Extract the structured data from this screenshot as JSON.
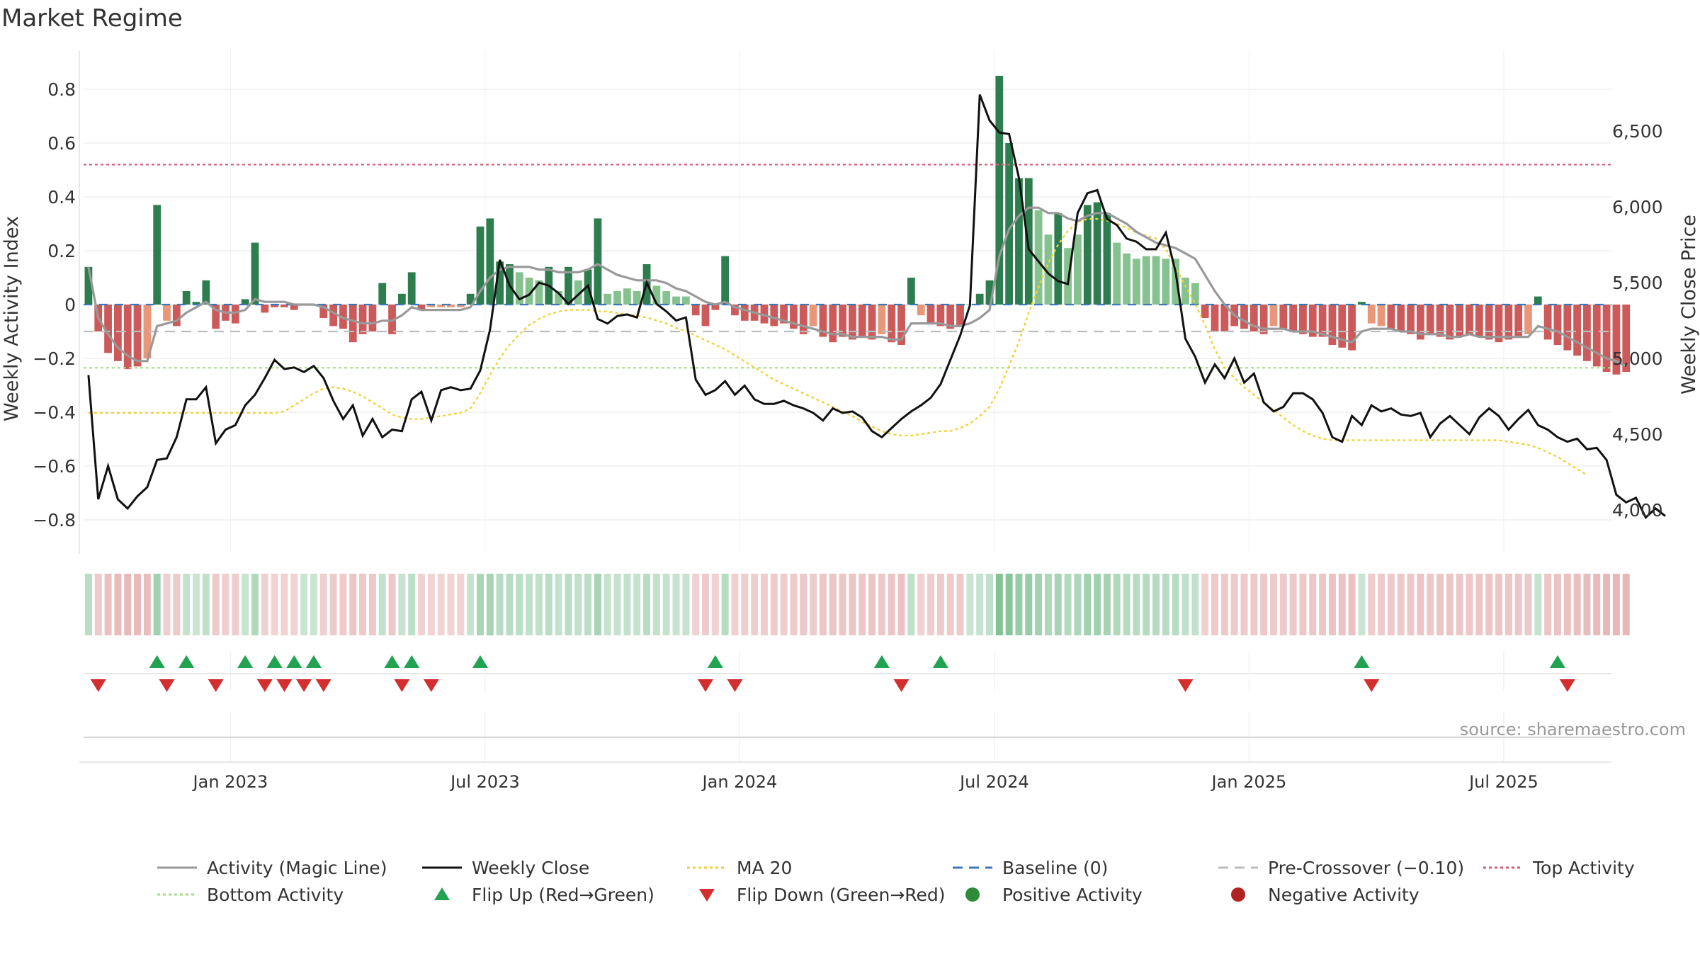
{
  "page": {
    "title": "Market Regime",
    "source": "source: sharemaestro.com"
  },
  "colors": {
    "pos_dark": "#2e7d4f",
    "pos_light": "#86c28f",
    "neg_dark": "#cc5a5a",
    "neg_light": "#e8977a",
    "magic_line": "#999999",
    "close": "#111111",
    "ma20": "#f0d23a",
    "baseline": "#3a78b8",
    "pre_crossover": "#bdbdbd",
    "top_activity": "#d45d7a",
    "bottom_activity": "#a9d98a",
    "flip_up": "#22a352",
    "flip_down": "#d32f2f",
    "positive_activity": "#2e8b3a",
    "negative_activity": "#b22222"
  },
  "chart_data": {
    "type": "bar",
    "title": "Market Regime",
    "ylabel": "Weekly Activity Index",
    "y2label": "Weekly Close Price",
    "ylim": [
      -0.92,
      0.94
    ],
    "y2lim": [
      3750,
      7000
    ],
    "yticks": [
      "0.8",
      "0.6",
      "0.4",
      "0.2",
      "0",
      "−0.2",
      "−0.4",
      "−0.6",
      "−0.8"
    ],
    "ytick_values": [
      0.8,
      0.6,
      0.4,
      0.2,
      0,
      -0.2,
      -0.4,
      -0.6,
      -0.8
    ],
    "y2ticks": [
      "6,500",
      "6,000",
      "5,500",
      "5,000",
      "4,500",
      "4,000"
    ],
    "y2tick_values": [
      6500,
      6000,
      5500,
      5000,
      4500,
      4000
    ],
    "xticks": [
      "Jan 2023",
      "Jul 2023",
      "Jan 2024",
      "Jul 2024",
      "Jan 2025",
      "Jul 2025"
    ],
    "xtick_weeks": [
      14.5,
      40.5,
      66.5,
      92.5,
      118.5,
      144.5
    ],
    "week_count": 156,
    "top_activity": 0.52,
    "bottom_activity": -0.235,
    "pre_crossover": -0.1,
    "baseline": 0,
    "activity": [
      0.14,
      -0.1,
      -0.18,
      -0.21,
      -0.24,
      -0.23,
      -0.2,
      0.37,
      -0.06,
      -0.08,
      0.05,
      0.01,
      0.09,
      -0.09,
      -0.06,
      -0.07,
      0.02,
      0.23,
      -0.03,
      -0.01,
      -0.01,
      -0.02,
      0.0,
      0.0,
      -0.05,
      -0.08,
      -0.09,
      -0.14,
      -0.11,
      -0.1,
      0.08,
      -0.11,
      0.04,
      0.12,
      -0.02,
      -0.01,
      -0.01,
      -0.01,
      -0.01,
      0.04,
      0.29,
      0.32,
      0.16,
      0.15,
      0.12,
      0.1,
      0.09,
      0.14,
      0.05,
      0.14,
      0.09,
      0.13,
      0.32,
      0.04,
      0.05,
      0.06,
      0.05,
      0.15,
      0.07,
      0.05,
      0.03,
      0.03,
      -0.04,
      -0.08,
      -0.02,
      0.18,
      -0.04,
      -0.06,
      -0.06,
      -0.07,
      -0.08,
      -0.07,
      -0.09,
      -0.11,
      -0.08,
      -0.12,
      -0.14,
      -0.12,
      -0.13,
      -0.12,
      -0.13,
      -0.11,
      -0.14,
      -0.15,
      0.1,
      -0.04,
      -0.07,
      -0.08,
      -0.09,
      -0.08,
      0.0,
      0.04,
      0.09,
      0.85,
      0.6,
      0.47,
      0.47,
      0.35,
      0.26,
      0.34,
      0.21,
      0.26,
      0.37,
      0.38,
      0.34,
      0.23,
      0.19,
      0.17,
      0.18,
      0.18,
      0.17,
      0.17,
      0.1,
      0.08,
      -0.05,
      -0.1,
      -0.1,
      -0.08,
      -0.09,
      -0.1,
      -0.11,
      -0.08,
      -0.09,
      -0.1,
      -0.11,
      -0.12,
      -0.12,
      -0.15,
      -0.16,
      -0.17,
      0.01,
      -0.07,
      -0.08,
      -0.09,
      -0.1,
      -0.11,
      -0.13,
      -0.11,
      -0.12,
      -0.13,
      -0.12,
      -0.11,
      -0.12,
      -0.13,
      -0.14,
      -0.13,
      -0.12,
      -0.11,
      0.03,
      -0.13,
      -0.15,
      -0.17,
      -0.19,
      -0.21,
      -0.23,
      -0.25,
      -0.26,
      -0.25
    ],
    "magic_line": [
      0.14,
      -0.05,
      -0.11,
      -0.16,
      -0.19,
      -0.21,
      -0.21,
      -0.08,
      -0.07,
      -0.06,
      -0.03,
      -0.01,
      0.01,
      -0.02,
      -0.03,
      -0.03,
      -0.02,
      0.02,
      0.01,
      0.01,
      0.01,
      0.0,
      0.0,
      0.0,
      -0.01,
      -0.03,
      -0.05,
      -0.06,
      -0.07,
      -0.07,
      -0.06,
      -0.06,
      -0.04,
      -0.01,
      -0.02,
      -0.02,
      -0.02,
      -0.02,
      -0.02,
      -0.01,
      0.05,
      0.1,
      0.13,
      0.14,
      0.14,
      0.14,
      0.13,
      0.13,
      0.12,
      0.12,
      0.12,
      0.13,
      0.15,
      0.13,
      0.11,
      0.1,
      0.09,
      0.09,
      0.09,
      0.08,
      0.06,
      0.05,
      0.03,
      0.01,
      0.0,
      0.01,
      -0.01,
      -0.02,
      -0.03,
      -0.04,
      -0.05,
      -0.06,
      -0.07,
      -0.08,
      -0.09,
      -0.1,
      -0.11,
      -0.11,
      -0.12,
      -0.12,
      -0.12,
      -0.12,
      -0.13,
      -0.13,
      -0.07,
      -0.07,
      -0.07,
      -0.07,
      -0.08,
      -0.08,
      -0.07,
      -0.05,
      -0.02,
      0.18,
      0.28,
      0.33,
      0.36,
      0.36,
      0.34,
      0.34,
      0.32,
      0.31,
      0.33,
      0.34,
      0.34,
      0.32,
      0.3,
      0.27,
      0.25,
      0.23,
      0.22,
      0.21,
      0.19,
      0.17,
      0.11,
      0.05,
      0.0,
      -0.04,
      -0.06,
      -0.08,
      -0.09,
      -0.09,
      -0.09,
      -0.1,
      -0.1,
      -0.1,
      -0.11,
      -0.12,
      -0.13,
      -0.14,
      -0.1,
      -0.09,
      -0.09,
      -0.09,
      -0.1,
      -0.1,
      -0.11,
      -0.11,
      -0.11,
      -0.12,
      -0.12,
      -0.11,
      -0.12,
      -0.12,
      -0.12,
      -0.12,
      -0.12,
      -0.12,
      -0.08,
      -0.09,
      -0.1,
      -0.12,
      -0.14,
      -0.16,
      -0.18,
      -0.2,
      -0.21,
      -0.23
    ],
    "ma20": [
      4640,
      4640,
      4640,
      4640,
      4640,
      4640,
      4640,
      4640,
      4640,
      4640,
      4640,
      4640,
      4640,
      4640,
      4640,
      4640,
      4640,
      4640,
      4640,
      4640,
      4650,
      4690,
      4730,
      4770,
      4800,
      4810,
      4800,
      4780,
      4750,
      4710,
      4670,
      4630,
      4610,
      4600,
      4600,
      4610,
      4620,
      4630,
      4640,
      4670,
      4770,
      4890,
      5000,
      5090,
      5160,
      5220,
      5260,
      5290,
      5310,
      5320,
      5320,
      5320,
      5310,
      5310,
      5300,
      5290,
      5280,
      5270,
      5250,
      5230,
      5200,
      5180,
      5150,
      5120,
      5090,
      5060,
      5020,
      4980,
      4940,
      4900,
      4860,
      4830,
      4800,
      4770,
      4740,
      4710,
      4680,
      4650,
      4620,
      4580,
      4550,
      4520,
      4500,
      4490,
      4490,
      4500,
      4510,
      4520,
      4520,
      4540,
      4570,
      4620,
      4680,
      4800,
      4950,
      5110,
      5300,
      5470,
      5630,
      5750,
      5840,
      5900,
      5920,
      5920,
      5910,
      5890,
      5860,
      5830,
      5810,
      5790,
      5720,
      5600,
      5480,
      5360,
      5220,
      5060,
      4940,
      4870,
      4810,
      4760,
      4710,
      4660,
      4610,
      4560,
      4520,
      4490,
      4470,
      4460,
      4460,
      4460,
      4460,
      4460,
      4460,
      4460,
      4460,
      4460,
      4460,
      4460,
      4460,
      4460,
      4460,
      4460,
      4460,
      4460,
      4460,
      4450,
      4440,
      4430,
      4410,
      4380,
      4350,
      4310,
      4270,
      4230
    ],
    "close": [
      4890,
      4070,
      4290,
      4070,
      4010,
      4090,
      4150,
      4330,
      4340,
      4480,
      4730,
      4730,
      4810,
      4440,
      4530,
      4560,
      4690,
      4760,
      4870,
      4990,
      4930,
      4940,
      4910,
      4950,
      4870,
      4720,
      4600,
      4690,
      4490,
      4600,
      4480,
      4530,
      4520,
      4730,
      4780,
      4590,
      4790,
      4810,
      4790,
      4800,
      4920,
      5190,
      5650,
      5480,
      5390,
      5420,
      5500,
      5480,
      5430,
      5360,
      5420,
      5480,
      5260,
      5230,
      5280,
      5290,
      5270,
      5500,
      5360,
      5310,
      5250,
      5270,
      4860,
      4760,
      4790,
      4850,
      4760,
      4820,
      4730,
      4700,
      4700,
      4720,
      4690,
      4670,
      4640,
      4590,
      4670,
      4640,
      4650,
      4610,
      4520,
      4480,
      4540,
      4600,
      4650,
      4690,
      4740,
      4830,
      4990,
      5150,
      5350,
      6740,
      6570,
      6490,
      6480,
      6190,
      5720,
      5640,
      5560,
      5510,
      5490,
      5960,
      6090,
      6110,
      5920,
      5880,
      5790,
      5770,
      5720,
      5720,
      5830,
      5570,
      5130,
      5010,
      4840,
      4960,
      4870,
      5000,
      4840,
      4900,
      4710,
      4650,
      4680,
      4770,
      4770,
      4730,
      4640,
      4480,
      4450,
      4620,
      4560,
      4690,
      4650,
      4670,
      4630,
      4620,
      4640,
      4480,
      4570,
      4620,
      4560,
      4500,
      4610,
      4670,
      4620,
      4530,
      4600,
      4660,
      4560,
      4530,
      4480,
      4450,
      4470,
      4400,
      4410,
      4330,
      4100,
      4050,
      4080,
      3950,
      4010,
      3960
    ],
    "flip_up_weeks": [
      7,
      10,
      16,
      19,
      21,
      23,
      31,
      33,
      40,
      64,
      81,
      87,
      130,
      150
    ],
    "flip_down_weeks": [
      1,
      8,
      13,
      18,
      20,
      22,
      24,
      32,
      35,
      63,
      66,
      83,
      112,
      131,
      151
    ]
  },
  "legend": [
    {
      "label": "Activity (Magic Line)",
      "kind": "solid",
      "color": "#999999"
    },
    {
      "label": "Weekly Close",
      "kind": "solid",
      "color": "#111111"
    },
    {
      "label": "MA 20",
      "kind": "dotted",
      "color": "#f0d23a"
    },
    {
      "label": "Baseline (0)",
      "kind": "dashed",
      "color": "#3a78b8"
    },
    {
      "label": "Pre-Crossover (−0.10)",
      "kind": "dashed",
      "color": "#bdbdbd"
    },
    {
      "label": "Top Activity",
      "kind": "dotted",
      "color": "#d45d7a"
    },
    {
      "label": "Bottom Activity",
      "kind": "dotted",
      "color": "#a9d98a"
    },
    {
      "label": "Flip Up (Red→Green)",
      "kind": "triangle-up",
      "color": "#22a352"
    },
    {
      "label": "Flip Down (Green→Red)",
      "kind": "triangle-down",
      "color": "#d32f2f"
    },
    {
      "label": "Positive Activity",
      "kind": "dot",
      "color": "#2e8b3a"
    },
    {
      "label": "Negative Activity",
      "kind": "dot",
      "color": "#b22222"
    }
  ]
}
